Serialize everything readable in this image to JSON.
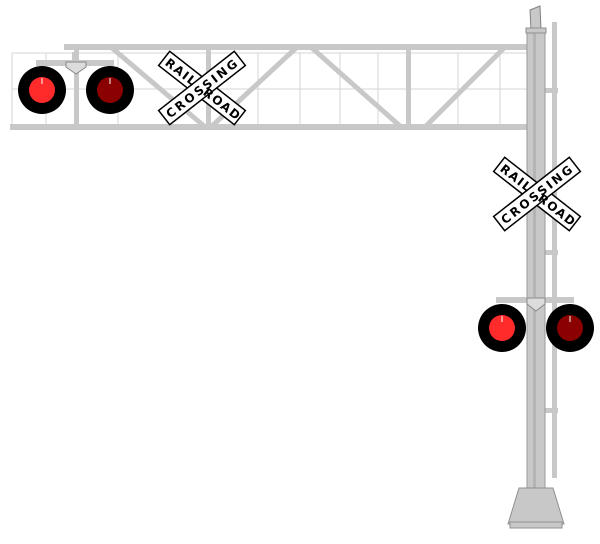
{
  "crossbuck_upper": {
    "word_top": "RAIL",
    "word_top_right": "ROAD",
    "word_bottom": "CROSSING"
  },
  "crossbuck_mast": {
    "word_top": "RAIL",
    "word_top_right": "ROAD",
    "word_bottom": "CROSSING"
  },
  "colors": {
    "structure": "#c8c8c8",
    "structure_dark": "#a0a0a0",
    "lamp_hood": "#000000",
    "lamp_lit": "#ff2a2a",
    "lamp_dim": "#8b0000",
    "sign_face": "#ffffff"
  },
  "lamps": {
    "cantilever_left": "lit",
    "cantilever_right": "dim",
    "mast_left": "lit",
    "mast_right": "dim"
  }
}
